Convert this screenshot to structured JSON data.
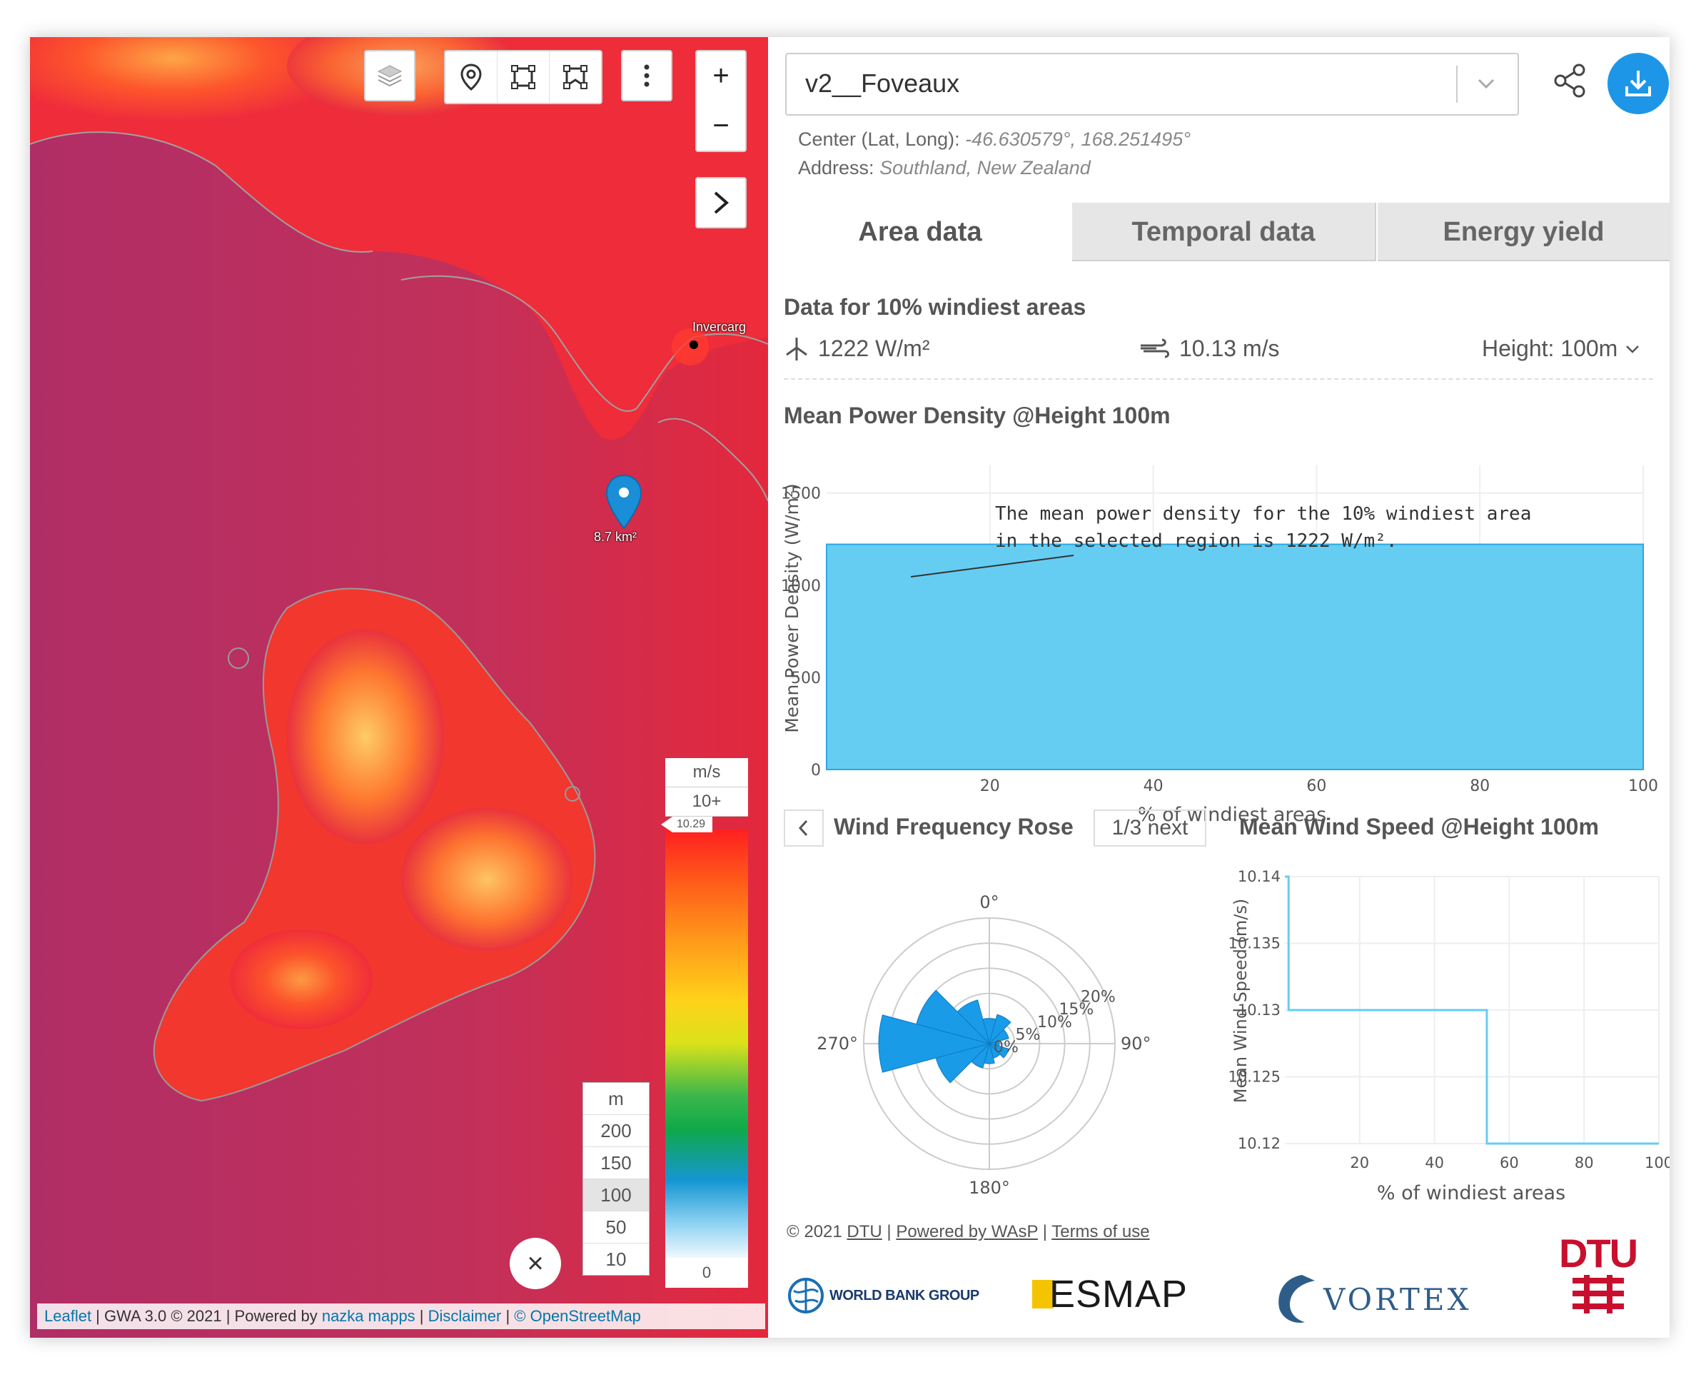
{
  "map": {
    "city_label": "Invercarg",
    "pin_area_label": "8.7 km²",
    "legend_speed": {
      "unit": "m/s",
      "max_label": "10+",
      "current_value": "10.29",
      "min_label": "0"
    },
    "legend_height": {
      "unit": "m",
      "options": [
        "200",
        "150",
        "100",
        "50",
        "10"
      ],
      "selected": "100"
    },
    "attribution": {
      "leaflet": "Leaflet",
      "sep1": " | GWA 3.0 © 2021 | Powered by ",
      "nazka": "nazka mapps",
      "sep2": " | ",
      "disclaimer": "Disclaimer",
      "sep3": " | ",
      "osm": "© OpenStreetMap"
    },
    "controls": {
      "layers_icon": "layers-icon",
      "zoom_in": "+",
      "zoom_out": "−",
      "close": "×"
    }
  },
  "panel": {
    "location_name": "v2__Foveaux",
    "center_label": "Center (Lat, Long): ",
    "center_value": "-46.630579°, 168.251495°",
    "address_label": "Address: ",
    "address_value": "Southland, New Zealand",
    "tabs": [
      {
        "label": "Area data",
        "active": true
      },
      {
        "label": "Temporal data",
        "active": false
      },
      {
        "label": "Energy yield",
        "active": false
      }
    ],
    "data_title": "Data for 10% windiest areas",
    "power_stat": "1222 W/m²",
    "speed_stat": "10.13 m/s",
    "height_select": "Height: 100m",
    "power_chart_title": "Mean Power Density @Height 100m",
    "rose_title": "Wind Frequency Rose",
    "rose_page": "1/3",
    "rose_next": "next",
    "speed_chart_title": "Mean Wind Speed @Height 100m",
    "footer": {
      "copyright": "© 2021 ",
      "dtu": "DTU",
      "sep1": " | ",
      "wasp": "Powered by WAsP",
      "sep2": " | ",
      "terms": "Terms of use"
    },
    "logos": {
      "worldbank": "WORLD BANK GROUP",
      "esmap": "ESMAP",
      "vortex": "VORTEX",
      "dtu": "DTU"
    },
    "accent_color": "#1e96e8"
  },
  "chart_data": [
    {
      "type": "area",
      "title": "Mean Power Density @Height 100m",
      "xlabel": "% of windiest areas",
      "ylabel": "Mean Power Density (W/m²)",
      "x": [
        0,
        100
      ],
      "y": [
        1222,
        1222
      ],
      "xlim": [
        0,
        100
      ],
      "ylim": [
        0,
        1650
      ],
      "xticks": [
        "20",
        "40",
        "60",
        "80",
        "100"
      ],
      "yticks": [
        "0",
        "500",
        "1000",
        "1500"
      ],
      "annotation": "The mean power density for the 10% windiest area in the selected region is 1222 W/m².",
      "color": "#66cdf2"
    },
    {
      "type": "polar-bar",
      "title": "Wind Frequency Rose",
      "angle_labels": [
        "0°",
        "90°",
        "180°",
        "270°"
      ],
      "radial_labels": [
        "0%",
        "5%",
        "10%",
        "15%",
        "20%"
      ],
      "directions_deg": [
        0,
        30,
        60,
        90,
        120,
        150,
        180,
        210,
        240,
        270,
        300,
        330
      ],
      "frequencies_pct": [
        5,
        6,
        4,
        2,
        4,
        3,
        4,
        5,
        11,
        22,
        15,
        9
      ],
      "color": "#1a9be8"
    },
    {
      "type": "line",
      "title": "Mean Wind Speed @Height 100m",
      "xlabel": "% of windiest areas",
      "ylabel": "Mean Wind Speed (m/s)",
      "x": [
        0,
        1,
        1,
        54,
        54,
        100
      ],
      "y": [
        10.14,
        10.14,
        10.13,
        10.13,
        10.12,
        10.12
      ],
      "xlim": [
        0,
        100
      ],
      "ylim": [
        10.12,
        10.14
      ],
      "xticks": [
        "20",
        "40",
        "60",
        "80",
        "100"
      ],
      "yticks": [
        "10.12",
        "10.125",
        "10.13",
        "10.135",
        "10.14"
      ],
      "color": "#66cdf2"
    }
  ]
}
